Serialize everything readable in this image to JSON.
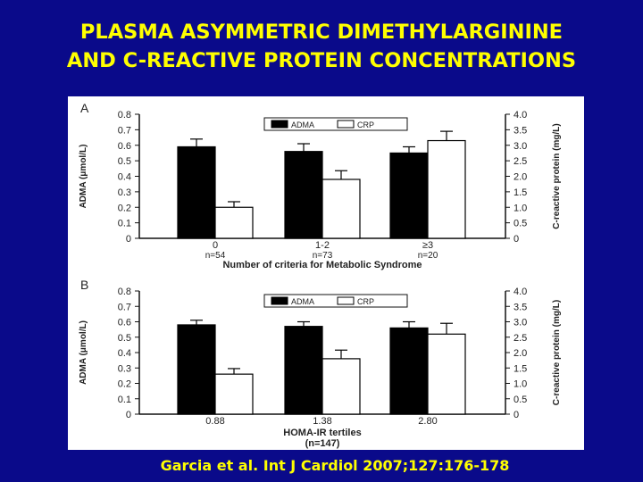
{
  "slide": {
    "title_line1": "PLASMA ASYMMETRIC DIMETHYLARGININE",
    "title_line2": "AND C-REACTIVE PROTEIN CONCENTRATIONS",
    "citation": "Garcia et al. Int J Cardiol 2007;127:176-178"
  },
  "colors": {
    "background": "#0a0a8a",
    "title": "#ffff00",
    "adma_bar": "#000000",
    "crp_bar": "#ffffff"
  },
  "chart_data": [
    {
      "panel": "A",
      "type": "bar",
      "legend": [
        "ADMA",
        "CRP"
      ],
      "legend_placement": "top",
      "categories": [
        "0",
        "1-2",
        "≥3"
      ],
      "category_sublabels": [
        "n=54",
        "n=73",
        "n=20"
      ],
      "xlabel": "Number of criteria for Metabolic Syndrome",
      "xlabel2": "",
      "ylabel_left": "ADMA (μmol/L)",
      "ylabel_right": "C-reactive protein (mg/L)",
      "ylim_left": [
        0,
        0.8
      ],
      "ylim_right": [
        0,
        4.0
      ],
      "yticks_left": [
        "0",
        "0.1",
        "0.2",
        "0.3",
        "0.4",
        "0.5",
        "0.6",
        "0.7",
        "0.8"
      ],
      "yticks_right": [
        "0",
        "0.5",
        "1.0",
        "1.5",
        "2.0",
        "2.5",
        "3.0",
        "3.5",
        "4.0"
      ],
      "grid": false,
      "series": [
        {
          "name": "ADMA",
          "axis": "left",
          "values": [
            0.59,
            0.56,
            0.55
          ],
          "errors": [
            0.05,
            0.05,
            0.04
          ]
        },
        {
          "name": "CRP",
          "axis": "right",
          "values": [
            1.0,
            1.9,
            3.15
          ],
          "errors": [
            0.18,
            0.28,
            0.3
          ]
        }
      ]
    },
    {
      "panel": "B",
      "type": "bar",
      "legend": [
        "ADMA",
        "CRP"
      ],
      "legend_placement": "top",
      "categories": [
        "0.88",
        "1.38",
        "2.80"
      ],
      "category_sublabels": [],
      "xlabel": "HOMA-IR tertiles",
      "xlabel2": "(n=147)",
      "ylabel_left": "ADMA (μmol/L)",
      "ylabel_right": "C-reactive protein (mg/L)",
      "ylim_left": [
        0,
        0.8
      ],
      "ylim_right": [
        0,
        4.0
      ],
      "yticks_left": [
        "0",
        "0.1",
        "0.2",
        "0.3",
        "0.4",
        "0.5",
        "0.6",
        "0.7",
        "0.8"
      ],
      "yticks_right": [
        "0",
        "0.5",
        "1.0",
        "1.5",
        "2.0",
        "2.5",
        "3.0",
        "3.5",
        "4.0"
      ],
      "grid": false,
      "series": [
        {
          "name": "ADMA",
          "axis": "left",
          "values": [
            0.58,
            0.57,
            0.56
          ],
          "errors": [
            0.03,
            0.03,
            0.04
          ]
        },
        {
          "name": "CRP",
          "axis": "right",
          "values": [
            1.3,
            1.8,
            2.6
          ],
          "errors": [
            0.18,
            0.28,
            0.35
          ]
        }
      ]
    }
  ]
}
